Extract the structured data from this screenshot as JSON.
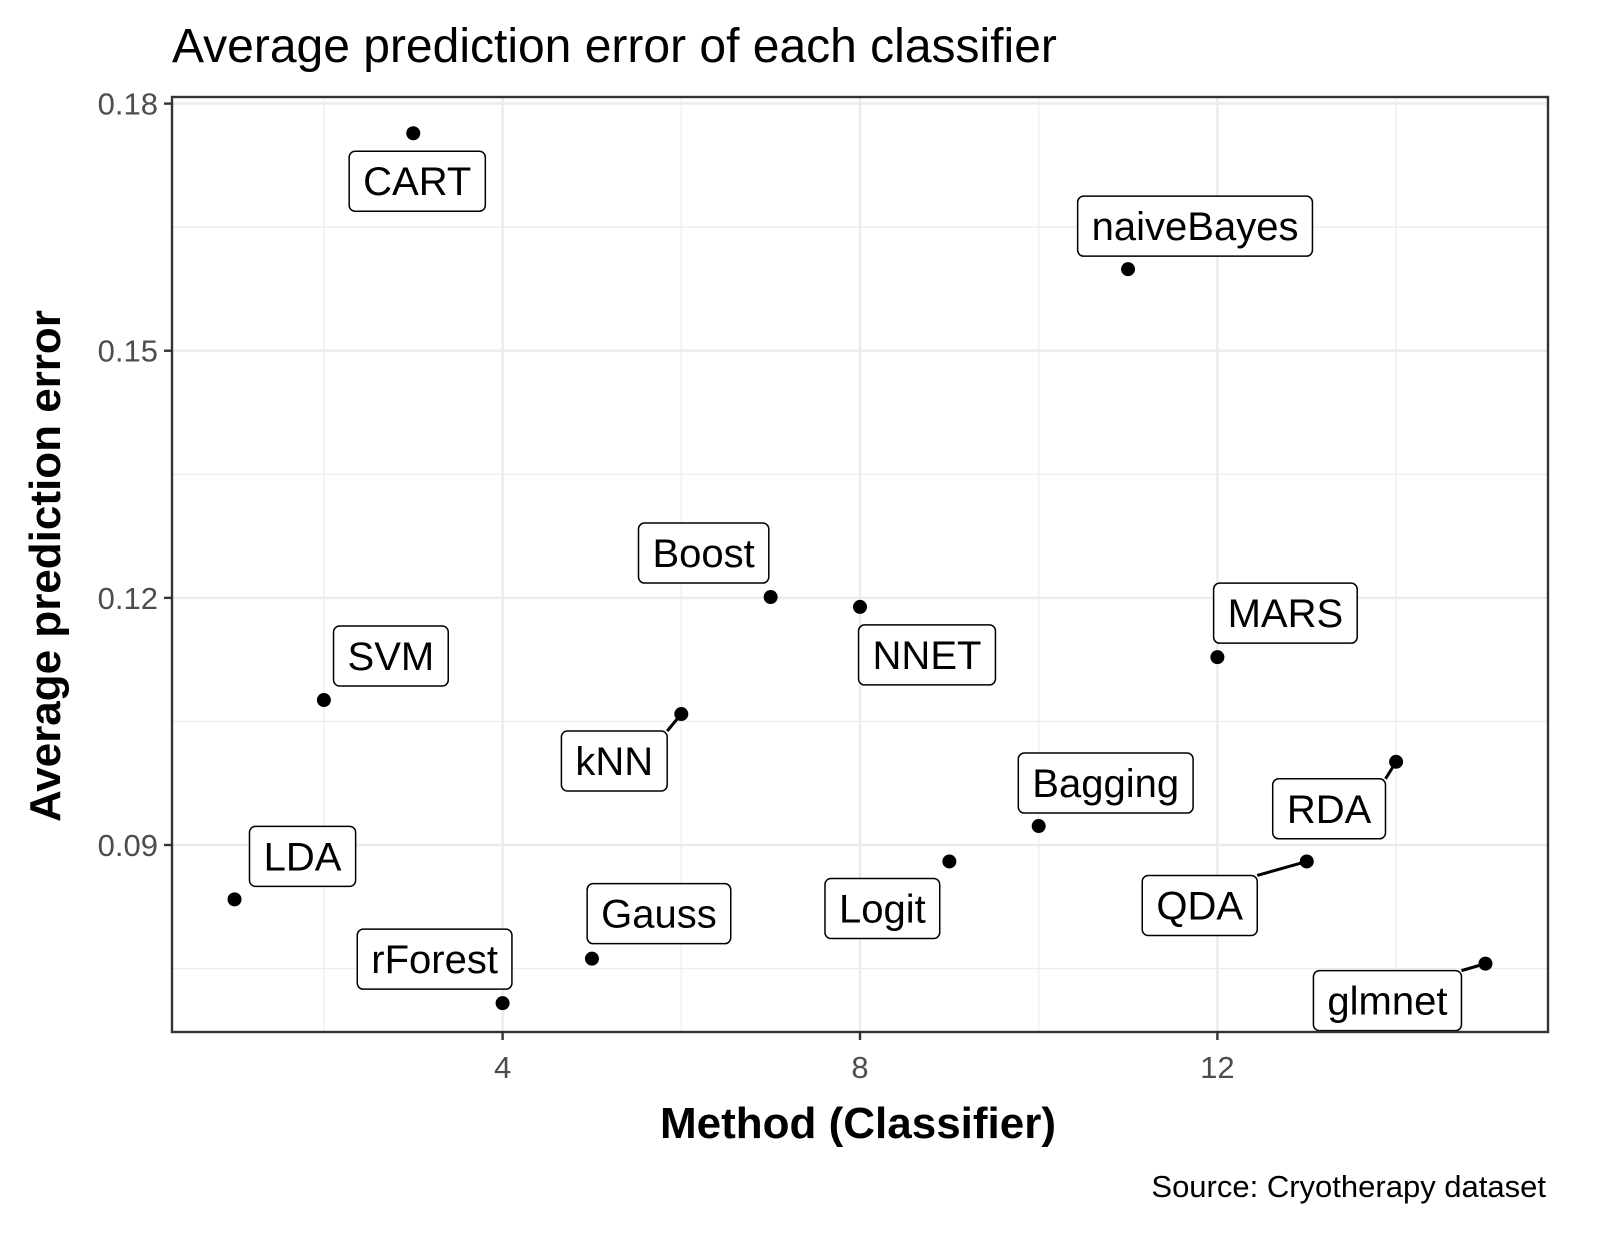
{
  "chart_data": {
    "type": "scatter",
    "title": "Average prediction error of each classifier",
    "xlabel": "Method (Classifier)",
    "ylabel": "Average prediction error",
    "caption": "Source: Cryotherapy dataset",
    "xlim": [
      0.3,
      15.7
    ],
    "ylim": [
      0.0673,
      0.1808
    ],
    "x_ticks": [
      4,
      8,
      12
    ],
    "x_tick_labels": [
      "4",
      "8",
      "12"
    ],
    "y_ticks": [
      0.09,
      0.12,
      0.15,
      0.18
    ],
    "y_tick_labels": [
      "0.09",
      "0.12",
      "0.15",
      "0.18"
    ],
    "grid": true,
    "legend": "none",
    "colors": {
      "points": "#000000",
      "grid": "#ebebeb",
      "border": "#333333",
      "tick_text": "#4d4d4d"
    },
    "points": [
      {
        "x": 1,
        "y": 0.0834,
        "label": "LDA"
      },
      {
        "x": 2,
        "y": 0.1076,
        "label": "SVM"
      },
      {
        "x": 3,
        "y": 0.1764,
        "label": "CART"
      },
      {
        "x": 4,
        "y": 0.0708,
        "label": "rForest"
      },
      {
        "x": 5,
        "y": 0.0762,
        "label": "Gauss"
      },
      {
        "x": 6,
        "y": 0.1059,
        "label": "kNN"
      },
      {
        "x": 7,
        "y": 0.1201,
        "label": "Boost"
      },
      {
        "x": 8,
        "y": 0.1189,
        "label": "NNET"
      },
      {
        "x": 9,
        "y": 0.088,
        "label": "Logit"
      },
      {
        "x": 10,
        "y": 0.0923,
        "label": "Bagging"
      },
      {
        "x": 11,
        "y": 0.1599,
        "label": "naiveBayes"
      },
      {
        "x": 12,
        "y": 0.1128,
        "label": "MARS"
      },
      {
        "x": 13,
        "y": 0.088,
        "label": "QDA"
      },
      {
        "x": 14,
        "y": 0.1001,
        "label": "RDA"
      },
      {
        "x": 15,
        "y": 0.0756,
        "label": "glmnet"
      }
    ]
  }
}
